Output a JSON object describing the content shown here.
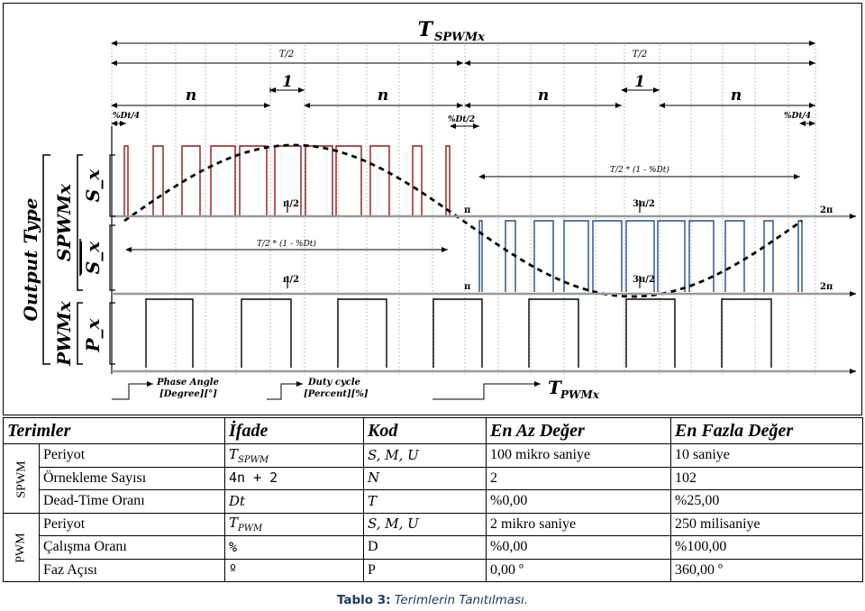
{
  "diagram": {
    "title_main": "T",
    "title_sub": "SPWMx",
    "half_period": "T/2",
    "n_label": "n",
    "one_label": "1",
    "dt_quarter": "%Dt/4",
    "dt_half": "%Dt/2",
    "t_dt_formula": "T/2 * (1 - %Dt)",
    "pi": "π",
    "pi_half": "π/2",
    "three_pi_half": "3π/2",
    "two_pi": "2π",
    "output_type": "Output Type",
    "spwmx": "SPWMx",
    "pwmx": "PWMx",
    "s_x": "S_x",
    "s_x_bar": "S_x",
    "p_x": "P_x",
    "phase_angle_1": "Phase Angle",
    "phase_angle_2": "[Degree][°]",
    "duty_cycle_1": "Duty cycle",
    "duty_cycle_2": "[Percent][%]",
    "tpwm_main": "T",
    "tpwm_sub": "PWMx",
    "colors": {
      "spwm_upper": "#8b1a1a",
      "spwm_lower": "#1f4e8c",
      "grid": "#888888"
    }
  },
  "table": {
    "headers": [
      "Terimler",
      "İfade",
      "Kod",
      "En Az Değer",
      "En Fazla Değer"
    ],
    "groups": [
      {
        "name": "SPWM",
        "rows": [
          {
            "term": "Periyot",
            "expr": "T",
            "expr_sub": "SPWM",
            "code": "S, M, U",
            "min": "100 mikro saniye",
            "max": "10 saniye"
          },
          {
            "term": "Örnekleme Sayısı",
            "expr": "4n + 2",
            "expr_sub": "",
            "code": "N",
            "min": "2",
            "max": "102"
          },
          {
            "term": "Dead-Time Oranı",
            "expr": "Dt",
            "expr_sub": "",
            "code": "T",
            "min": "%0,00",
            "max": "%25,00"
          }
        ]
      },
      {
        "name": "PWM",
        "rows": [
          {
            "term": "Periyot",
            "expr": "T",
            "expr_sub": "PWM",
            "code": "S, M, U",
            "min": "2 mikro saniye",
            "max": "250 milisaniye"
          },
          {
            "term": "Çalışma Oranı",
            "expr": "%",
            "expr_sub": "",
            "code": "D",
            "min": "%0,00",
            "max": "%100,00"
          },
          {
            "term": "Faz Açısı",
            "expr": "º",
            "expr_sub": "",
            "code": "P",
            "min": "0,00 º",
            "max": "360,00 º"
          }
        ]
      }
    ]
  },
  "caption": {
    "label": "Tablo 3:",
    "text": "Terimlerin Tanıtılması."
  }
}
